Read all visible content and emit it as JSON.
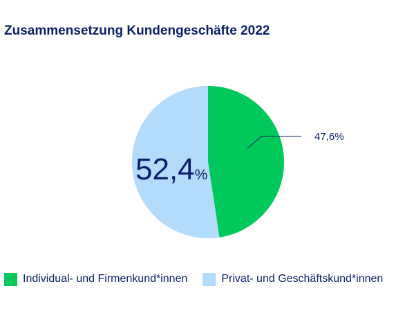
{
  "title": "Zusammensetzung Kundengeschäfte 2022",
  "chart_data": {
    "type": "pie",
    "title": "Zusammensetzung Kundengeschäfte 2022",
    "slices": [
      {
        "name": "Individual- und Firmenkund*innen",
        "value": 47.6,
        "value_label": "47,6%",
        "color": "#00c95b"
      },
      {
        "name": "Privat- und Geschäftskund*innen",
        "value": 52.4,
        "value_label": "52,4",
        "value_suffix": "%",
        "color": "#b3dbfb"
      }
    ],
    "start": "12 o'clock, clockwise",
    "legend": "bottom-left"
  }
}
